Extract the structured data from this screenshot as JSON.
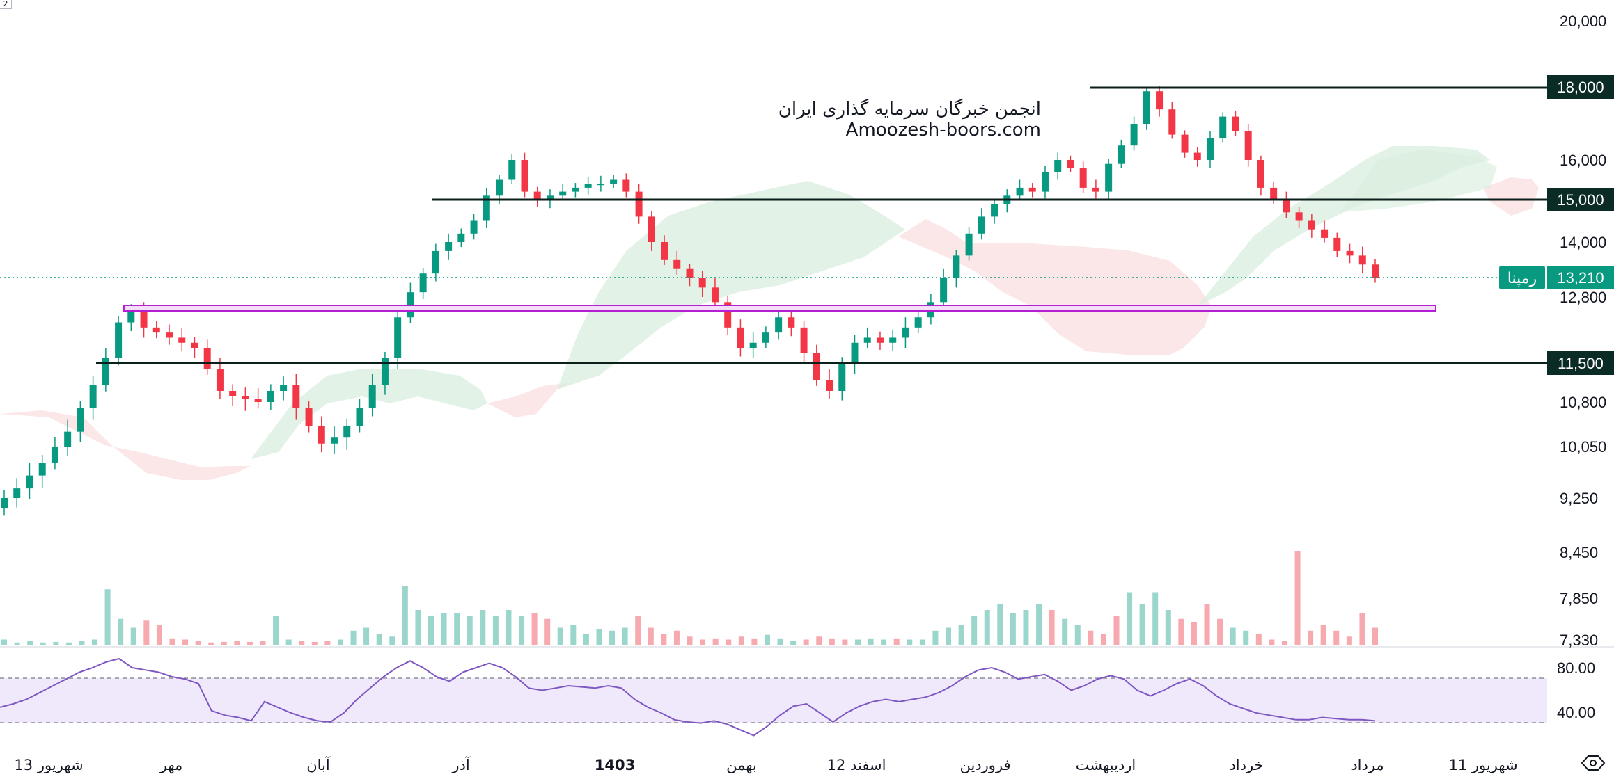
{
  "chart_data": {
    "type": "candlestick",
    "symbol": "رمپنا",
    "last_price": "13,210",
    "watermark": {
      "line1": "انجمن خبرگان سرمایه گذاری ایران",
      "line2": "Amoozesh-boors.com"
    },
    "price_axis_labels": [
      "20,000",
      "16,000",
      "14,000",
      "12,800",
      "10,800",
      "10,050",
      "9,250",
      "8,450",
      "7,850",
      "7,330"
    ],
    "price_axis_values": [
      20000,
      16000,
      14000,
      12800,
      10800,
      10050,
      9250,
      8450,
      7850,
      7330
    ],
    "levels": [
      {
        "label": "18,000",
        "value": 18000
      },
      {
        "label": "15,000",
        "value": 15000
      },
      {
        "label": "11,500",
        "value": 11500
      }
    ],
    "support_zone": [
      12400,
      12570
    ],
    "time_labels": [
      "13 شهریور",
      "مهر",
      "آبان",
      "آذر",
      "1403",
      "بهمن",
      "12 اسفند",
      "فروردین",
      "اردیبهشت",
      "خرداد",
      "مرداد",
      "11 شهریور"
    ],
    "time_label_bold": "1403",
    "rsi_levels": [
      "80.00",
      "40.00"
    ],
    "top_left_marker": "2",
    "colors": {
      "up": "#089981",
      "down": "#f23645",
      "level": "#0b1f1b",
      "badge": "#0b2b26",
      "zone": "#b41fd3",
      "last": "#089981",
      "rsi": "#7e57c2"
    },
    "candles_close_path": [
      9250,
      9400,
      9600,
      9800,
      10050,
      10300,
      10700,
      11100,
      11600,
      12300,
      12500,
      12200,
      12100,
      12000,
      11900,
      11800,
      11400,
      11000,
      10900,
      10850,
      10800,
      11000,
      11100,
      10700,
      10400,
      10100,
      10200,
      10400,
      10700,
      11100,
      11600,
      12400,
      12900,
      13300,
      13800,
      14000,
      14200,
      14500,
      15100,
      15500,
      16000,
      15200,
      15000,
      15100,
      15200,
      15300,
      15400,
      15400,
      15500,
      15200,
      14600,
      14000,
      13600,
      13400,
      13200,
      13000,
      12700,
      12200,
      11800,
      11900,
      12100,
      12400,
      12200,
      11700,
      11200,
      11000,
      11500,
      11900,
      12000,
      11900,
      12000,
      12200,
      12400,
      12700,
      13200,
      13700,
      14200,
      14600,
      14900,
      15100,
      15300,
      15200,
      15700,
      16000,
      15800,
      15300,
      15200,
      15900,
      16400,
      17000,
      17900,
      17400,
      16700,
      16200,
      16000,
      16600,
      17200,
      16800,
      16000,
      15300,
      15000,
      14700,
      14500,
      14300,
      14100,
      13800,
      13700,
      13500,
      13210
    ],
    "volume_relative": [
      0.1,
      0.05,
      0.08,
      0.05,
      0.06,
      0.05,
      0.08,
      0.1,
      0.95,
      0.45,
      0.3,
      0.42,
      0.35,
      0.12,
      0.1,
      0.08,
      0.05,
      0.06,
      0.08,
      0.06,
      0.07,
      0.5,
      0.1,
      0.08,
      0.06,
      0.08,
      0.1,
      0.25,
      0.3,
      0.2,
      0.15,
      1.0,
      0.6,
      0.5,
      0.55,
      0.55,
      0.5,
      0.6,
      0.5,
      0.6,
      0.5,
      0.55,
      0.45,
      0.3,
      0.35,
      0.2,
      0.28,
      0.25,
      0.3,
      0.5,
      0.3,
      0.2,
      0.25,
      0.15,
      0.1,
      0.12,
      0.1,
      0.15,
      0.12,
      0.18,
      0.12,
      0.08,
      0.1,
      0.15,
      0.12,
      0.1,
      0.1,
      0.12,
      0.1,
      0.12,
      0.1,
      0.1,
      0.25,
      0.3,
      0.35,
      0.5,
      0.6,
      0.7,
      0.55,
      0.6,
      0.7,
      0.6,
      0.45,
      0.35,
      0.25,
      0.2,
      0.5,
      0.9,
      0.7,
      0.9,
      0.6,
      0.45,
      0.4,
      0.7,
      0.45,
      0.3,
      0.25,
      0.2,
      0.1,
      0.08,
      1.6,
      0.25,
      0.35,
      0.25,
      0.15,
      0.55,
      0.3
    ],
    "rsi_series": [
      45,
      48,
      52,
      58,
      64,
      70,
      76,
      80,
      85,
      88,
      80,
      78,
      76,
      72,
      70,
      66,
      42,
      38,
      36,
      33,
      50,
      45,
      40,
      36,
      33,
      32,
      40,
      52,
      62,
      72,
      80,
      86,
      80,
      72,
      68,
      76,
      80,
      84,
      80,
      72,
      62,
      60,
      62,
      64,
      63,
      62,
      64,
      62,
      52,
      45,
      40,
      34,
      32,
      31,
      33,
      30,
      25,
      20,
      28,
      38,
      46,
      48,
      40,
      32,
      40,
      46,
      50,
      52,
      50,
      52,
      54,
      58,
      64,
      72,
      78,
      80,
      76,
      70,
      72,
      74,
      68,
      60,
      64,
      70,
      73,
      70,
      60,
      55,
      60,
      66,
      70,
      64,
      55,
      48,
      44,
      40,
      38,
      36,
      34,
      34,
      36,
      35,
      34,
      34,
      33
    ]
  }
}
